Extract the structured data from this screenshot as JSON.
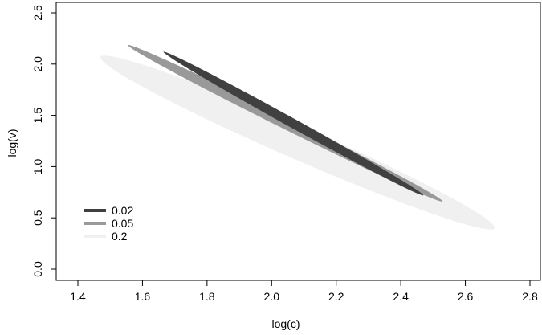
{
  "chart_data": {
    "type": "area",
    "title": "",
    "xlabel": "log(c)",
    "ylabel": "log(v)",
    "xlim": [
      1.4,
      2.8
    ],
    "ylim": [
      0.0,
      2.5
    ],
    "xticks": [
      1.4,
      1.6,
      1.8,
      2.0,
      2.2,
      2.4,
      2.6,
      2.8
    ],
    "yticks": [
      0.0,
      0.5,
      1.0,
      1.5,
      2.0,
      2.5
    ],
    "xtick_labels": [
      "1.4",
      "1.6",
      "1.8",
      "2.0",
      "2.2",
      "2.4",
      "2.6",
      "2.8"
    ],
    "ytick_labels": [
      "0.0",
      "0.5",
      "1.0",
      "1.5",
      "2.0",
      "2.5"
    ],
    "grid": false,
    "legend_position": "bottom-left",
    "series": [
      {
        "name": "0.2",
        "color": "#f0f0f0",
        "shape": "ellipse",
        "endpoints": [
          [
            1.47,
            2.07
          ],
          [
            2.69,
            0.4
          ]
        ],
        "minor_half_width": 0.16
      },
      {
        "name": "0.05",
        "color": "#999999",
        "shape": "ellipse",
        "endpoints": [
          [
            1.555,
            2.185
          ],
          [
            2.53,
            0.66
          ]
        ],
        "minor_half_width": 0.055
      },
      {
        "name": "0.02",
        "color": "#404040",
        "shape": "ellipse",
        "endpoints": [
          [
            1.665,
            2.12
          ],
          [
            2.47,
            0.72
          ]
        ],
        "minor_half_width": 0.045
      }
    ],
    "legend": [
      {
        "label": "0.02",
        "color": "#404040"
      },
      {
        "label": "0.05",
        "color": "#999999"
      },
      {
        "label": "0.2",
        "color": "#f0f0f0"
      }
    ]
  }
}
